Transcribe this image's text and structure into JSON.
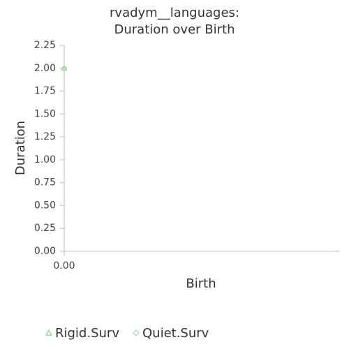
{
  "chart_data": {
    "type": "scatter",
    "title": [
      "rvadym__languages:",
      "Duration over Birth"
    ],
    "x_label": "Birth",
    "y_label": "Duration",
    "xlim": [
      0,
      1
    ],
    "xticks": [
      {
        "value": 0,
        "label": "0.00"
      }
    ],
    "ylim": [
      0,
      2.25
    ],
    "yticks": [
      {
        "value": 0,
        "label": "0.00"
      },
      {
        "value": 0.25,
        "label": "0.25"
      },
      {
        "value": 0.5,
        "label": "0.50"
      },
      {
        "value": 0.75,
        "label": "0.75"
      },
      {
        "value": 1,
        "label": "1.00"
      },
      {
        "value": 1.25,
        "label": "1.25"
      },
      {
        "value": 1.5,
        "label": "1.50"
      },
      {
        "value": 1.75,
        "label": "1.75"
      },
      {
        "value": 2,
        "label": "2.00"
      },
      {
        "value": 2.25,
        "label": "2.25"
      }
    ],
    "series": [
      {
        "name": "Rigid.Surv",
        "color": "#8fcf8f",
        "marker": "triangle",
        "x": [
          0
        ],
        "values": [
          2
        ]
      },
      {
        "name": "Quiet.Surv",
        "color": "#a9d9a9",
        "marker": "diamond",
        "x": [
          0
        ],
        "values": [
          2
        ]
      }
    ]
  }
}
